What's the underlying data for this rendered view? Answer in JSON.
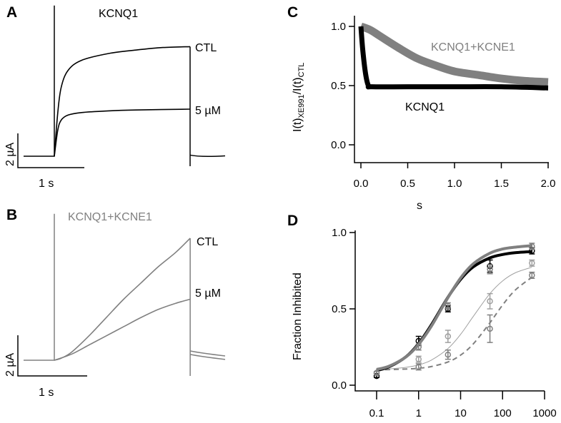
{
  "colors": {
    "black": "#000000",
    "gray": "#808080",
    "light_gray": "#a0a0a0"
  },
  "chart_data": [
    {
      "panel": "A",
      "type": "line",
      "title": "KCNQ1",
      "title_color": "#000000",
      "scale_bar": {
        "current": "2 µA",
        "time": "1 s"
      },
      "series": [
        {
          "name": "CTL",
          "t": [
            0,
            0.05,
            0.1,
            0.2,
            0.4,
            0.8,
            1.2,
            1.6,
            2.0
          ],
          "i": [
            0,
            2.5,
            4.0,
            5.0,
            5.6,
            6.0,
            6.2,
            6.35,
            6.4
          ]
        },
        {
          "name": "5 µM",
          "t": [
            0,
            0.05,
            0.1,
            0.2,
            0.4,
            0.8,
            1.2,
            2.0
          ],
          "i": [
            0,
            1.5,
            2.1,
            2.4,
            2.55,
            2.65,
            2.7,
            2.75
          ]
        }
      ],
      "tail_i": -0.06,
      "spike_i": 8.8,
      "pulse_duration_s": 2.0,
      "unit_i": "µA"
    },
    {
      "panel": "B",
      "type": "line",
      "title": "KCNQ1+KCNE1",
      "title_color": "#808080",
      "scale_bar": {
        "current": "2 µA",
        "time": "1 s"
      },
      "series": [
        {
          "name": "CTL",
          "t": [
            0,
            0.1,
            0.25,
            0.5,
            0.75,
            1.0,
            1.25,
            1.5,
            1.75,
            1.96
          ],
          "i": [
            0,
            0.1,
            0.4,
            1.2,
            2.1,
            3.0,
            3.8,
            4.6,
            5.3,
            6.0
          ]
        },
        {
          "name": "5 µM",
          "t": [
            0,
            0.25,
            0.5,
            0.75,
            1.0,
            1.25,
            1.5,
            1.75,
            1.96
          ],
          "i": [
            0,
            0.3,
            0.75,
            1.2,
            1.65,
            2.1,
            2.5,
            2.8,
            3.0
          ]
        }
      ],
      "tail_i": [
        0.35,
        0.18
      ],
      "spike_i": 7.2,
      "pulse_duration_s": 1.96,
      "unit_i": "µA"
    },
    {
      "panel": "C",
      "type": "line",
      "xlabel": "s",
      "ylabel_main": "I(t)",
      "ylabel_sub1": "XE991",
      "ylabel_mid": "/I(t)",
      "ylabel_sub2": "CTL",
      "xlim": [
        -0.05,
        2.0
      ],
      "ylim": [
        -0.15,
        1.1
      ],
      "xticks": [
        "0.0",
        "0.5",
        "1.0",
        "1.5",
        "2.0"
      ],
      "yticks": [
        "0.0",
        "0.5",
        "1.0"
      ],
      "series": [
        {
          "name": "KCNQ1+KCNE1",
          "color": "#808080",
          "x": [
            0,
            0.1,
            0.2,
            0.4,
            0.6,
            0.8,
            1.0,
            1.25,
            1.5,
            1.75,
            2.0
          ],
          "y": [
            1.0,
            0.97,
            0.92,
            0.82,
            0.73,
            0.67,
            0.62,
            0.59,
            0.56,
            0.54,
            0.53
          ]
        },
        {
          "name": "KCNQ1",
          "color": "#000000",
          "x": [
            0,
            0.02,
            0.05,
            0.08,
            0.12,
            0.5,
            1.0,
            1.5,
            2.0
          ],
          "y": [
            1.0,
            0.8,
            0.6,
            0.5,
            0.49,
            0.49,
            0.49,
            0.49,
            0.48
          ]
        }
      ]
    },
    {
      "panel": "D",
      "type": "scatter",
      "ylabel": "Fraction Inhibited",
      "xscale": "log",
      "xlim": [
        0.07,
        700
      ],
      "ylim": [
        -0.02,
        1.0
      ],
      "xticks": [
        "0.1",
        "1",
        "10",
        "100",
        "1000"
      ],
      "yticks": [
        "0.0",
        "0.5",
        "1.0"
      ],
      "fit_x": [
        0.1,
        0.2,
        0.5,
        1,
        2,
        5,
        10,
        20,
        50,
        100,
        200,
        500
      ],
      "series": [
        {
          "color": "#000000",
          "style": "thick",
          "x": [
            0.1,
            1,
            5,
            50,
            500
          ],
          "y": [
            0.06,
            0.29,
            0.5,
            0.78,
            0.88
          ],
          "err": [
            0.01,
            0.03,
            0.02,
            0.04,
            0.02
          ],
          "fit_y": [
            0.096,
            0.121,
            0.186,
            0.273,
            0.394,
            0.576,
            0.693,
            0.775,
            0.834,
            0.856,
            0.868,
            0.875
          ]
        },
        {
          "color": "#808080",
          "style": "thick",
          "x": [
            0.1,
            1,
            5,
            50,
            500
          ],
          "y": [
            0.08,
            0.25,
            0.52,
            0.76,
            0.91
          ],
          "err": [
            0.01,
            0.02,
            0.02,
            0.03,
            0.02
          ],
          "fit_y": [
            0.103,
            0.125,
            0.185,
            0.267,
            0.385,
            0.574,
            0.702,
            0.795,
            0.865,
            0.892,
            0.904,
            0.914
          ]
        },
        {
          "color": "#a0a0a0",
          "style": "thin",
          "x": [
            0.1,
            1,
            5,
            50,
            500
          ],
          "y": [
            0.08,
            0.17,
            0.32,
            0.55,
            0.8
          ],
          "err": [
            0.01,
            0.02,
            0.04,
            0.05,
            0.02
          ],
          "fit_y": [
            0.103,
            0.107,
            0.117,
            0.133,
            0.164,
            0.24,
            0.333,
            0.45,
            0.6,
            0.683,
            0.736,
            0.773
          ]
        },
        {
          "color": "#808080",
          "style": "dashed",
          "x": [
            0.1,
            1,
            5,
            50,
            500
          ],
          "y": [
            0.08,
            0.12,
            0.2,
            0.37,
            0.72
          ],
          "err": [
            0.01,
            0.02,
            0.03,
            0.09,
            0.02
          ],
          "fit_y": [
            0.101,
            0.102,
            0.106,
            0.111,
            0.122,
            0.152,
            0.197,
            0.27,
            0.409,
            0.525,
            0.623,
            0.707
          ]
        }
      ]
    }
  ]
}
